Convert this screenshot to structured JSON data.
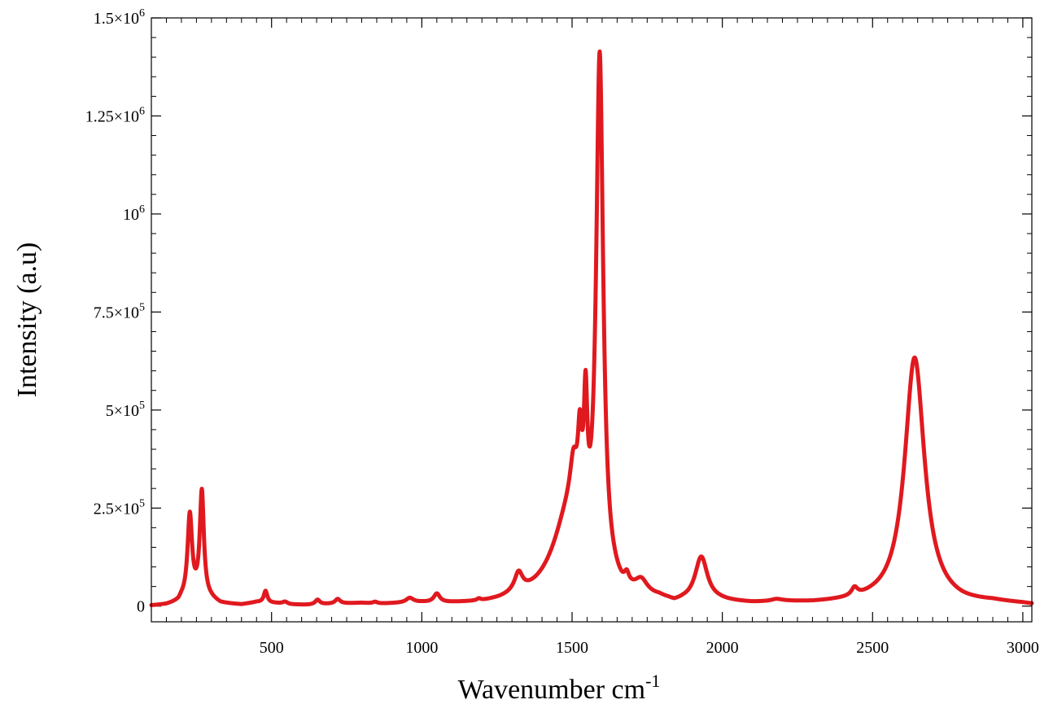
{
  "chart_data": {
    "type": "line",
    "title": "",
    "xlabel": "Wavenumber cm",
    "xlabel_superscript": "-1",
    "ylabel": "Intensity (a.u)",
    "xlim": [
      100,
      3030
    ],
    "ylim": [
      -40000,
      1500000
    ],
    "x_ticks": [
      {
        "value": 500,
        "label": "500"
      },
      {
        "value": 1000,
        "label": "1000"
      },
      {
        "value": 1500,
        "label": "1500"
      },
      {
        "value": 2000,
        "label": "2000"
      },
      {
        "value": 2500,
        "label": "2500"
      },
      {
        "value": 3000,
        "label": "3000"
      }
    ],
    "y_ticks": [
      {
        "value": 0,
        "base": "0",
        "exp": ""
      },
      {
        "value": 250000,
        "base": "2.5×10",
        "exp": "5"
      },
      {
        "value": 500000,
        "base": "5×10",
        "exp": "5"
      },
      {
        "value": 750000,
        "base": "7.5×10",
        "exp": "5"
      },
      {
        "value": 1000000,
        "base": "10",
        "exp": "6"
      },
      {
        "value": 1250000,
        "base": "1.25×10",
        "exp": "6"
      },
      {
        "value": 1500000,
        "base": "1.5×10",
        "exp": "6"
      }
    ],
    "grid": false,
    "legend": "none",
    "series": [
      {
        "color": "#e0191f",
        "baseline_points": [
          [
            100,
            0
          ],
          [
            150,
            2000
          ],
          [
            190,
            8000
          ],
          [
            200,
            15000
          ],
          [
            260,
            25000
          ],
          [
            300,
            15000
          ],
          [
            330,
            5000
          ],
          [
            400,
            2000
          ],
          [
            450,
            8000
          ],
          [
            520,
            5000
          ],
          [
            560,
            2000
          ],
          [
            620,
            1000
          ],
          [
            700,
            3000
          ],
          [
            800,
            5000
          ],
          [
            850,
            2000
          ],
          [
            900,
            3000
          ],
          [
            1000,
            4000
          ],
          [
            1080,
            2000
          ],
          [
            1150,
            1000
          ],
          [
            1200,
            0
          ],
          [
            1260,
            2000
          ],
          [
            1300,
            5000
          ],
          [
            1380,
            3000
          ],
          [
            1640,
            0
          ],
          [
            1665,
            -5000
          ],
          [
            1700,
            0
          ],
          [
            1790,
            5000
          ],
          [
            1820,
            0
          ],
          [
            1840,
            -5000
          ],
          [
            1870,
            0
          ],
          [
            1990,
            5000
          ],
          [
            2100,
            2000
          ],
          [
            2200,
            5000
          ],
          [
            2300,
            3000
          ],
          [
            2380,
            4000
          ],
          [
            2500,
            5000
          ],
          [
            2560,
            3000
          ],
          [
            2720,
            2000
          ],
          [
            2800,
            0
          ],
          [
            2900,
            5000
          ],
          [
            3000,
            2000
          ],
          [
            3030,
            0
          ]
        ],
        "peaks": [
          {
            "center": 228,
            "height": 210000,
            "width": 9
          },
          {
            "center": 268,
            "height": 265000,
            "width": 8
          },
          {
            "center": 480,
            "height": 30000,
            "width": 7
          },
          {
            "center": 545,
            "height": 6000,
            "width": 10
          },
          {
            "center": 653,
            "height": 12000,
            "width": 9
          },
          {
            "center": 720,
            "height": 12000,
            "width": 10
          },
          {
            "center": 845,
            "height": 5000,
            "width": 10
          },
          {
            "center": 960,
            "height": 12000,
            "width": 15
          },
          {
            "center": 1050,
            "height": 22000,
            "width": 12
          },
          {
            "center": 1190,
            "height": 5000,
            "width": 8
          },
          {
            "center": 1322,
            "height": 48000,
            "width": 16
          },
          {
            "center": 1495,
            "height": 230000,
            "width": 70
          },
          {
            "center": 1505,
            "height": 110000,
            "width": 14
          },
          {
            "center": 1526,
            "height": 180000,
            "width": 8
          },
          {
            "center": 1545,
            "height": 300000,
            "width": 7
          },
          {
            "center": 1592,
            "height": 1320000,
            "width": 14
          },
          {
            "center": 1682,
            "height": 25000,
            "width": 9
          },
          {
            "center": 1730,
            "height": 35000,
            "width": 25
          },
          {
            "center": 1930,
            "height": 113000,
            "width": 25
          },
          {
            "center": 2180,
            "height": 5000,
            "width": 20
          },
          {
            "center": 2440,
            "height": 20000,
            "width": 12
          },
          {
            "center": 2640,
            "height": 630000,
            "width": 40
          }
        ]
      }
    ]
  }
}
